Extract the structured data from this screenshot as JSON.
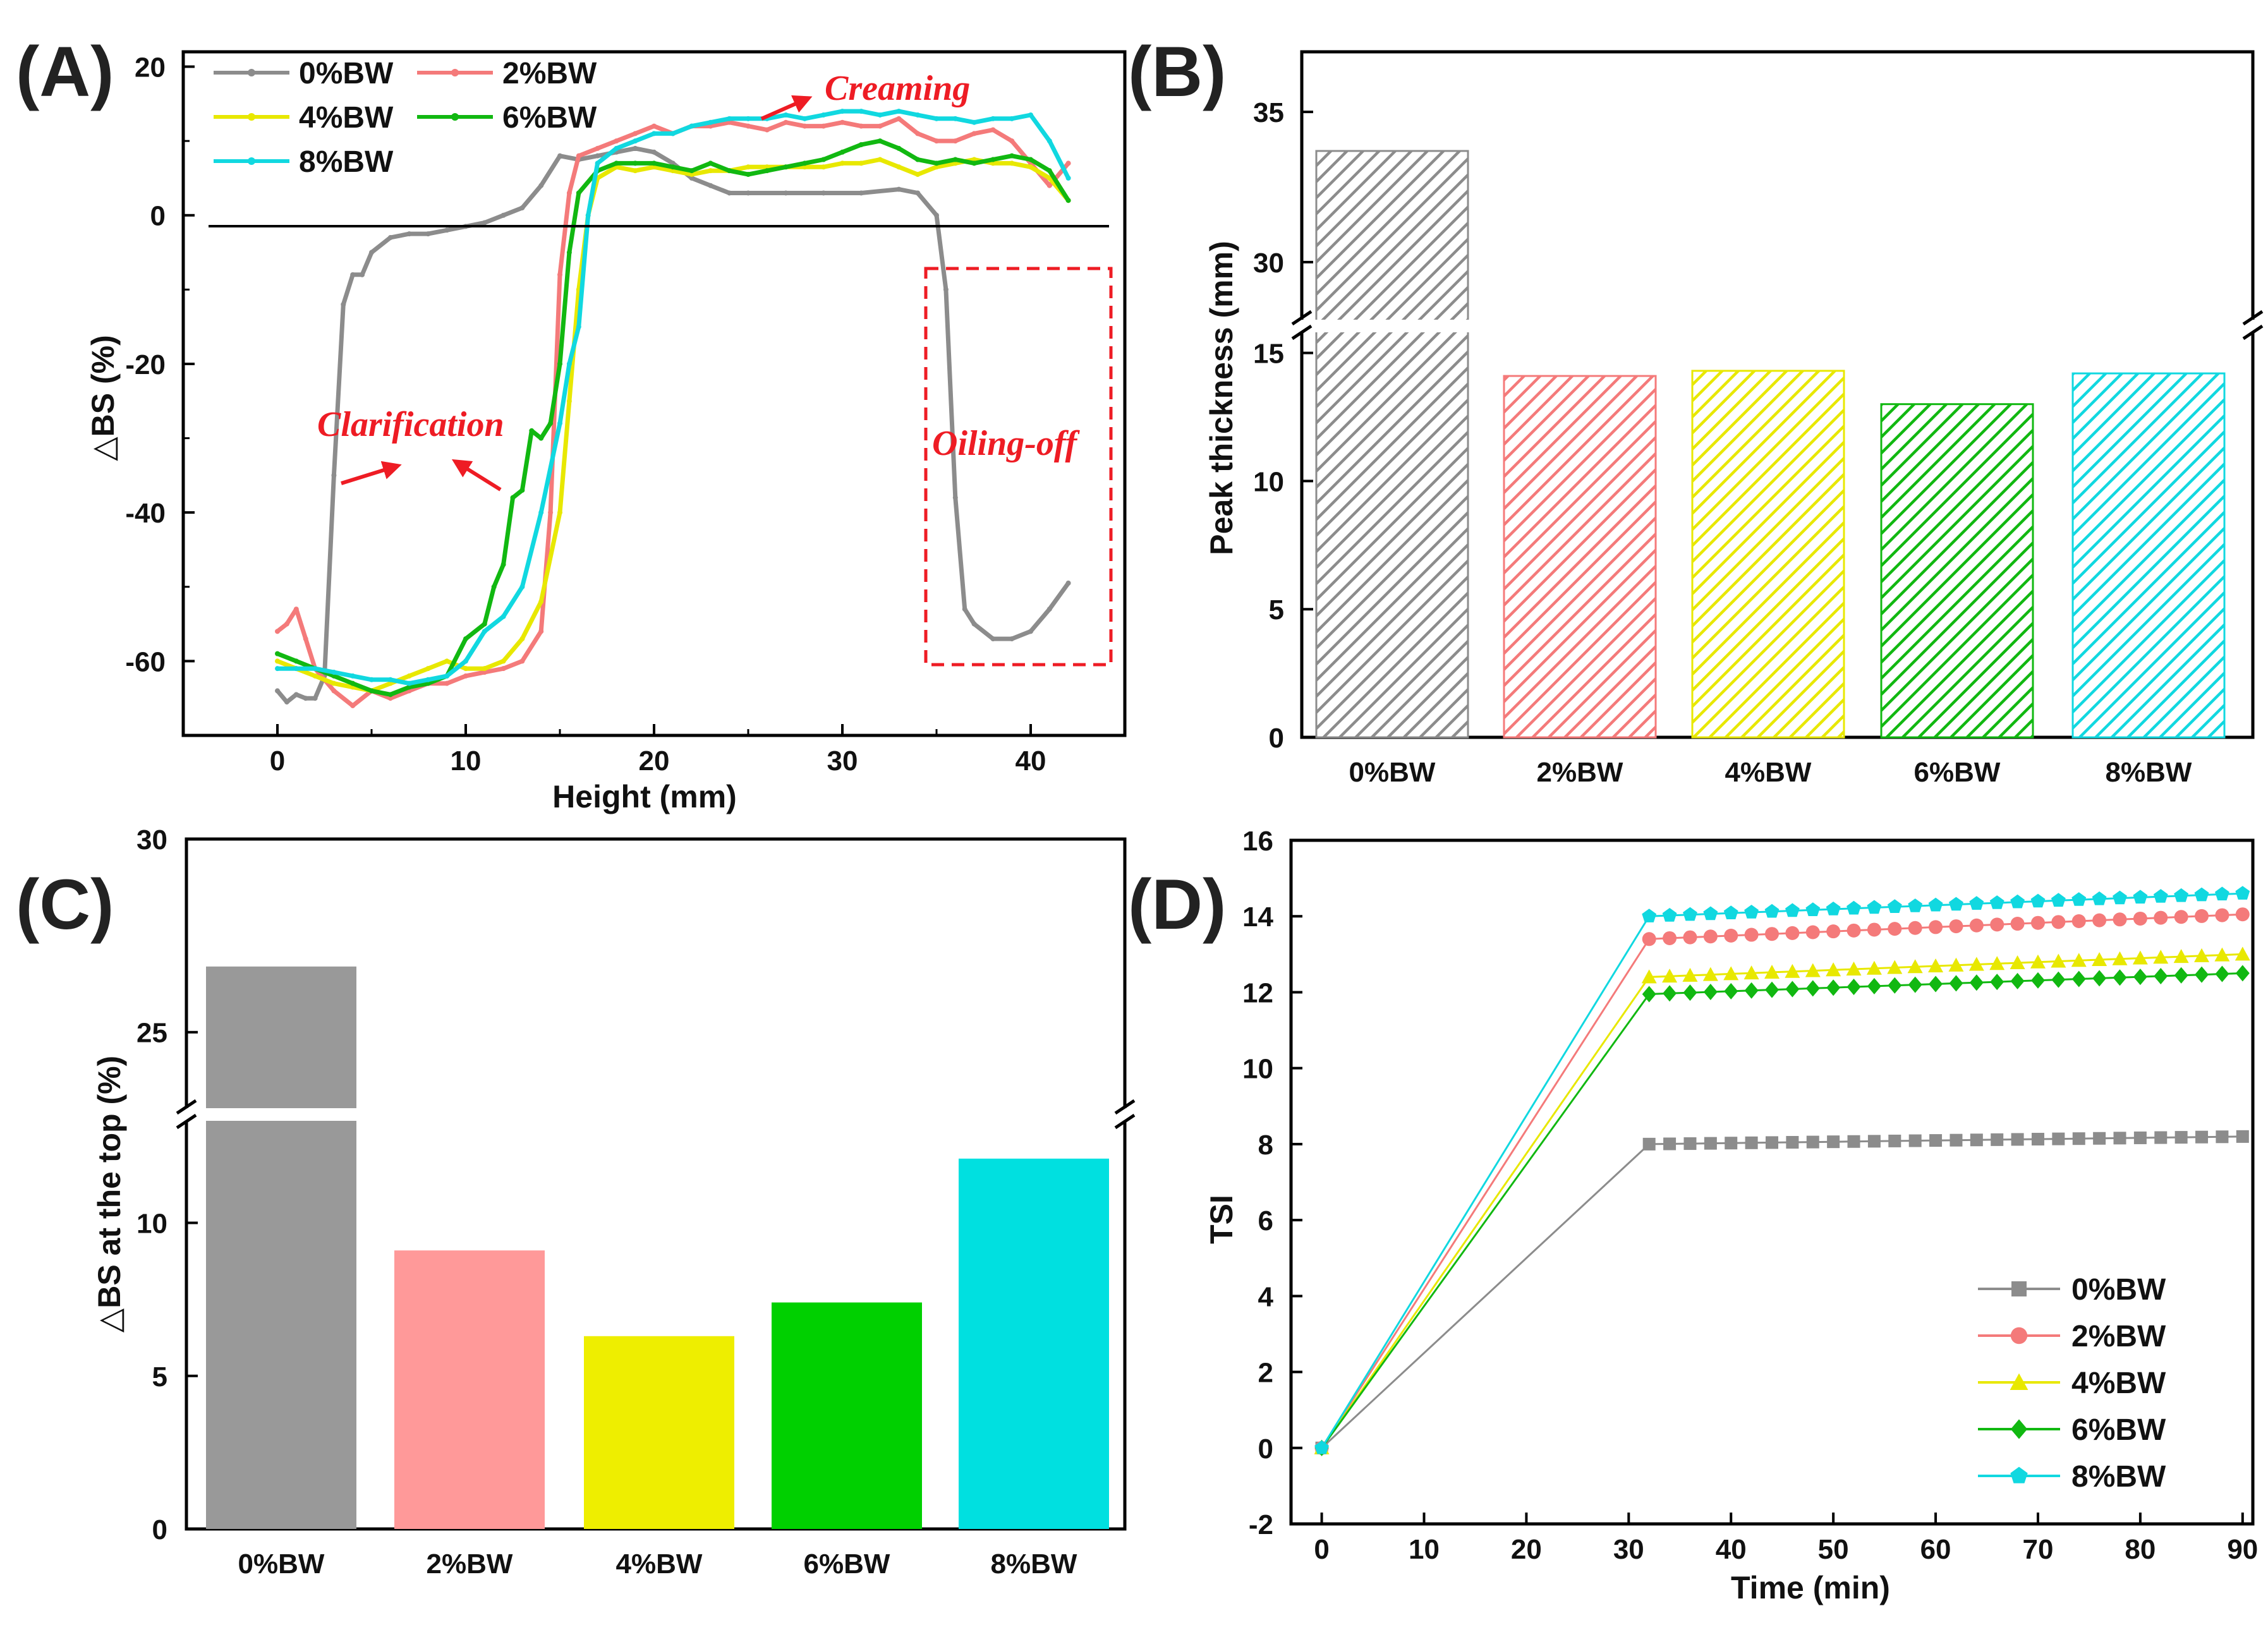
{
  "colors": {
    "0%BW": "#8c8c8c",
    "2%BW": "#f47a7a",
    "4%BW": "#e8e800",
    "6%BW": "#11b811",
    "8%BW": "#11d8e0",
    "annotation": "#ee1c24",
    "bar_c": [
      "#999999",
      "#ff9999",
      "#eeee00",
      "#00d000",
      "#00e0e0"
    ]
  },
  "chart_data": [
    {
      "panel": "(A)",
      "type": "line",
      "xlabel": "Height (mm)",
      "ylabel": "△BS (%)",
      "xlim": [
        -5,
        45
      ],
      "ylim": [
        -70,
        22
      ],
      "xticks": [
        0,
        10,
        20,
        30,
        40
      ],
      "yticks": [
        -60,
        -40,
        -20,
        0,
        20
      ],
      "legend": [
        "0%BW",
        "2%BW",
        "4%BW",
        "6%BW",
        "8%BW"
      ],
      "annotations": {
        "creaming": "Creaming",
        "clarification": "Clarification",
        "oiling_off": "Oiling-off"
      },
      "series": [
        {
          "name": "0%BW",
          "points": [
            [
              0,
              -64
            ],
            [
              0.5,
              -65.5
            ],
            [
              1,
              -64.5
            ],
            [
              1.5,
              -65
            ],
            [
              2,
              -65
            ],
            [
              2.5,
              -62
            ],
            [
              3,
              -35
            ],
            [
              3.5,
              -12
            ],
            [
              4,
              -8
            ],
            [
              4.5,
              -8
            ],
            [
              5,
              -5
            ],
            [
              6,
              -3
            ],
            [
              7,
              -2.5
            ],
            [
              8,
              -2.5
            ],
            [
              9,
              -2
            ],
            [
              10,
              -1.5
            ],
            [
              11,
              -1
            ],
            [
              12,
              0
            ],
            [
              13,
              1
            ],
            [
              14,
              4
            ],
            [
              15,
              8
            ],
            [
              16,
              7.5
            ],
            [
              17,
              8
            ],
            [
              18,
              8.5
            ],
            [
              19,
              9
            ],
            [
              20,
              8.5
            ],
            [
              21,
              7
            ],
            [
              22,
              5
            ],
            [
              23,
              4
            ],
            [
              24,
              3
            ],
            [
              25,
              3
            ],
            [
              27,
              3
            ],
            [
              29,
              3
            ],
            [
              31,
              3
            ],
            [
              33,
              3.5
            ],
            [
              34,
              3
            ],
            [
              35,
              0
            ],
            [
              35.5,
              -10
            ],
            [
              36,
              -38
            ],
            [
              36.5,
              -53
            ],
            [
              37,
              -55
            ],
            [
              38,
              -57
            ],
            [
              39,
              -57
            ],
            [
              40,
              -56
            ],
            [
              41,
              -53
            ],
            [
              42,
              -49.5
            ]
          ]
        },
        {
          "name": "2%BW",
          "points": [
            [
              0,
              -56
            ],
            [
              0.5,
              -55
            ],
            [
              1,
              -53
            ],
            [
              1.5,
              -57
            ],
            [
              2,
              -61
            ],
            [
              3,
              -64
            ],
            [
              4,
              -66
            ],
            [
              5,
              -64
            ],
            [
              6,
              -65
            ],
            [
              7,
              -64
            ],
            [
              8,
              -63
            ],
            [
              9,
              -63
            ],
            [
              10,
              -62
            ],
            [
              11,
              -61.5
            ],
            [
              12,
              -61
            ],
            [
              13,
              -60
            ],
            [
              14,
              -56
            ],
            [
              14.5,
              -40
            ],
            [
              15,
              -8
            ],
            [
              15.5,
              3
            ],
            [
              16,
              8
            ],
            [
              17,
              9
            ],
            [
              18,
              10
            ],
            [
              19,
              11
            ],
            [
              20,
              12
            ],
            [
              21,
              11
            ],
            [
              22,
              12
            ],
            [
              23,
              12
            ],
            [
              24,
              12.5
            ],
            [
              25,
              12
            ],
            [
              26,
              11.5
            ],
            [
              27,
              12.5
            ],
            [
              28,
              12
            ],
            [
              29,
              12
            ],
            [
              30,
              12.5
            ],
            [
              31,
              12
            ],
            [
              32,
              12
            ],
            [
              33,
              13
            ],
            [
              34,
              11
            ],
            [
              35,
              10
            ],
            [
              36,
              10
            ],
            [
              37,
              11
            ],
            [
              38,
              11.5
            ],
            [
              39,
              10
            ],
            [
              40,
              7
            ],
            [
              41,
              4
            ],
            [
              42,
              7
            ]
          ]
        },
        {
          "name": "4%BW",
          "points": [
            [
              0,
              -60
            ],
            [
              1,
              -61
            ],
            [
              2,
              -62
            ],
            [
              3,
              -63
            ],
            [
              4,
              -63.5
            ],
            [
              5,
              -64
            ],
            [
              6,
              -63
            ],
            [
              7,
              -62
            ],
            [
              8,
              -61
            ],
            [
              9,
              -60
            ],
            [
              10,
              -61
            ],
            [
              11,
              -61
            ],
            [
              12,
              -60
            ],
            [
              13,
              -57
            ],
            [
              14,
              -52
            ],
            [
              15,
              -40
            ],
            [
              15.5,
              -25
            ],
            [
              16,
              -10
            ],
            [
              16.5,
              0
            ],
            [
              17,
              5
            ],
            [
              18,
              6.5
            ],
            [
              19,
              6
            ],
            [
              20,
              6.5
            ],
            [
              21,
              6
            ],
            [
              22,
              5.5
            ],
            [
              23,
              6
            ],
            [
              24,
              6
            ],
            [
              25,
              6.5
            ],
            [
              26,
              6.5
            ],
            [
              27,
              6.5
            ],
            [
              28,
              6.5
            ],
            [
              29,
              6.5
            ],
            [
              30,
              7
            ],
            [
              31,
              7
            ],
            [
              32,
              7.5
            ],
            [
              33,
              6.5
            ],
            [
              34,
              5.5
            ],
            [
              35,
              6.5
            ],
            [
              36,
              7
            ],
            [
              37,
              7.5
            ],
            [
              38,
              7
            ],
            [
              39,
              7
            ],
            [
              40,
              6.5
            ],
            [
              41,
              5
            ],
            [
              42,
              2
            ]
          ]
        },
        {
          "name": "6%BW",
          "points": [
            [
              0,
              -59
            ],
            [
              1,
              -60
            ],
            [
              2,
              -61
            ],
            [
              3,
              -62
            ],
            [
              4,
              -63
            ],
            [
              5,
              -64
            ],
            [
              6,
              -64.5
            ],
            [
              7,
              -63.5
            ],
            [
              8,
              -63
            ],
            [
              9,
              -62
            ],
            [
              10,
              -57
            ],
            [
              11,
              -55
            ],
            [
              11.5,
              -50
            ],
            [
              12,
              -47
            ],
            [
              12.5,
              -38
            ],
            [
              13,
              -37
            ],
            [
              13.5,
              -29
            ],
            [
              14,
              -30
            ],
            [
              14.5,
              -28
            ],
            [
              15,
              -20
            ],
            [
              15.5,
              -5
            ],
            [
              16,
              3
            ],
            [
              17,
              6
            ],
            [
              18,
              7
            ],
            [
              19,
              7
            ],
            [
              20,
              7
            ],
            [
              21,
              6.5
            ],
            [
              22,
              6
            ],
            [
              23,
              7
            ],
            [
              24,
              6
            ],
            [
              25,
              5.5
            ],
            [
              26,
              6
            ],
            [
              27,
              6.5
            ],
            [
              28,
              7
            ],
            [
              29,
              7.5
            ],
            [
              30,
              8.5
            ],
            [
              31,
              9.5
            ],
            [
              32,
              10
            ],
            [
              33,
              9
            ],
            [
              34,
              7.5
            ],
            [
              35,
              7
            ],
            [
              36,
              7.5
            ],
            [
              37,
              7
            ],
            [
              38,
              7.5
            ],
            [
              39,
              8
            ],
            [
              40,
              7.5
            ],
            [
              41,
              6
            ],
            [
              42,
              2
            ]
          ]
        },
        {
          "name": "8%BW",
          "points": [
            [
              0,
              -61
            ],
            [
              1,
              -61
            ],
            [
              2,
              -61
            ],
            [
              3,
              -61.5
            ],
            [
              4,
              -62
            ],
            [
              5,
              -62.5
            ],
            [
              6,
              -62.5
            ],
            [
              7,
              -63
            ],
            [
              8,
              -62.5
            ],
            [
              9,
              -62
            ],
            [
              10,
              -60
            ],
            [
              11,
              -56
            ],
            [
              12,
              -54
            ],
            [
              13,
              -50
            ],
            [
              14,
              -40
            ],
            [
              15,
              -28
            ],
            [
              15.5,
              -20
            ],
            [
              16,
              -15
            ],
            [
              16.5,
              0
            ],
            [
              17,
              7
            ],
            [
              18,
              9
            ],
            [
              19,
              10
            ],
            [
              20,
              11
            ],
            [
              21,
              11
            ],
            [
              22,
              12
            ],
            [
              23,
              12.5
            ],
            [
              24,
              13
            ],
            [
              25,
              13
            ],
            [
              26,
              13
            ],
            [
              27,
              13.5
            ],
            [
              28,
              13
            ],
            [
              29,
              13.5
            ],
            [
              30,
              14
            ],
            [
              31,
              14
            ],
            [
              32,
              13.5
            ],
            [
              33,
              14
            ],
            [
              34,
              13.5
            ],
            [
              35,
              13
            ],
            [
              36,
              13
            ],
            [
              37,
              12.5
            ],
            [
              38,
              13
            ],
            [
              39,
              13
            ],
            [
              40,
              13.5
            ],
            [
              41,
              10
            ],
            [
              42,
              5
            ]
          ]
        }
      ]
    },
    {
      "panel": "(B)",
      "type": "bar",
      "ylabel": "Peak thickness (mm)",
      "categories": [
        "0%BW",
        "2%BW",
        "4%BW",
        "6%BW",
        "8%BW"
      ],
      "values": [
        33.7,
        14.1,
        14.3,
        13.0,
        14.2
      ],
      "broken_axis": {
        "lower": [
          0,
          16
        ],
        "upper": [
          28,
          37
        ]
      },
      "yticks": [
        0,
        5,
        10,
        15,
        30,
        35
      ],
      "fill": "hatched"
    },
    {
      "panel": "(C)",
      "type": "bar",
      "ylabel": "△BS at the top (%)",
      "categories": [
        "0%BW",
        "2%BW",
        "4%BW",
        "6%BW",
        "8%BW"
      ],
      "values": [
        26.7,
        9.1,
        6.3,
        7.4,
        12.1
      ],
      "broken_axis": {
        "lower": [
          0,
          13.5
        ],
        "upper": [
          23,
          30
        ]
      },
      "yticks": [
        0,
        5,
        10,
        25,
        30
      ],
      "fill": "solid"
    },
    {
      "panel": "(D)",
      "type": "line",
      "xlabel": "Time (min)",
      "ylabel": "TSI",
      "xlim": [
        -3,
        91
      ],
      "ylim": [
        -2,
        16
      ],
      "xticks": [
        0,
        10,
        20,
        30,
        40,
        50,
        60,
        70,
        80,
        90
      ],
      "yticks": [
        -2,
        0,
        2,
        4,
        6,
        8,
        10,
        12,
        14,
        16
      ],
      "legend": [
        "0%BW",
        "2%BW",
        "4%BW",
        "6%BW",
        "8%BW"
      ],
      "series": [
        {
          "name": "0%BW",
          "marker": "square",
          "start": 8.0,
          "end": 8.2
        },
        {
          "name": "2%BW",
          "marker": "circle",
          "start": 13.4,
          "end": 14.05
        },
        {
          "name": "4%BW",
          "marker": "triangle",
          "start": 12.4,
          "end": 13.0
        },
        {
          "name": "6%BW",
          "marker": "diamond",
          "start": 11.95,
          "end": 12.5
        },
        {
          "name": "8%BW",
          "marker": "pentagon",
          "start": 14.0,
          "end": 14.6
        }
      ],
      "time_points": {
        "first": 0,
        "plateau_start": 32,
        "plateau_end": 90,
        "count": 30
      }
    }
  ]
}
